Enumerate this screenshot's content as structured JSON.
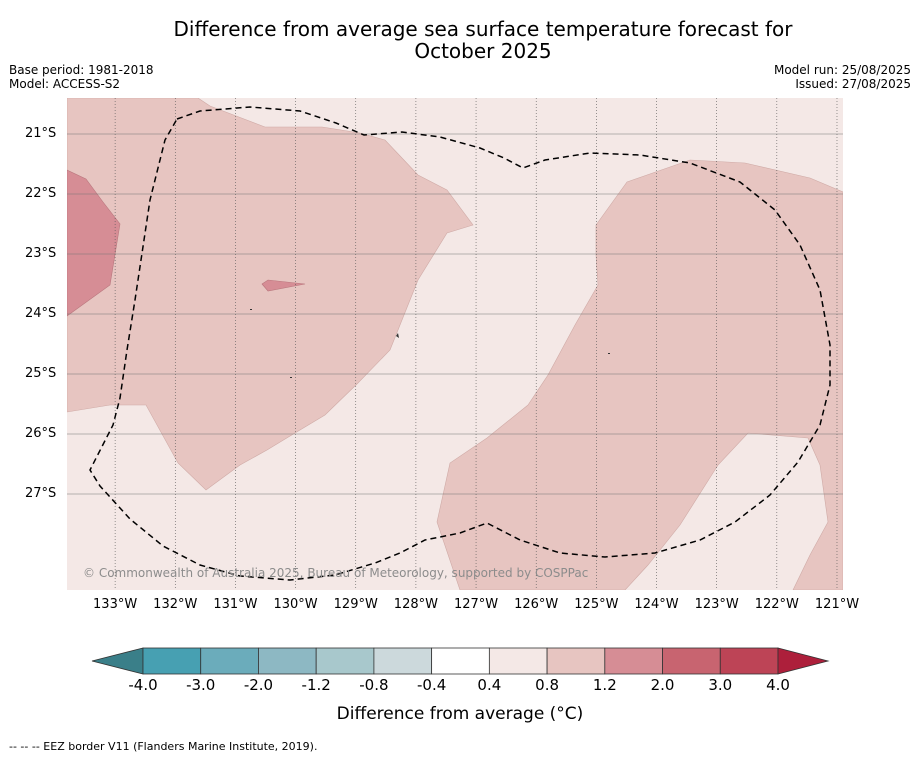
{
  "title": "Difference from average sea surface temperature forecast for October 2025",
  "meta_left": {
    "base_period": "Base period: 1981-2018",
    "model": "Model: ACCESS-S2"
  },
  "meta_right": {
    "model_run": "Model run: 25/08/2025",
    "issued": "Issued: 27/08/2025"
  },
  "copyright": "© Commonwealth of Australia 2025, Bureau of Meteorology, supported by COSPPac",
  "footer": "--  --  -- EEZ border V11 (Flanders Marine Institute, 2019).",
  "map": {
    "lon_range": [
      -133.8,
      -120.9
    ],
    "lat_range": [
      -28.6,
      -20.4
    ],
    "lat_labels": [
      "21°S",
      "22°S",
      "23°S",
      "24°S",
      "25°S",
      "26°S",
      "27°S"
    ],
    "lat_values": [
      -21,
      -22,
      -23,
      -24,
      -25,
      -26,
      -27
    ],
    "lon_labels": [
      "133°W",
      "132°W",
      "131°W",
      "130°W",
      "129°W",
      "128°W",
      "127°W",
      "126°W",
      "125°W",
      "124°W",
      "123°W",
      "122°W",
      "121°W"
    ],
    "lon_values": [
      -133,
      -132,
      -131,
      -130,
      -129,
      -128,
      -127,
      -126,
      -125,
      -124,
      -123,
      -122,
      -121
    ],
    "background_band": "0.4 to 0.8",
    "colors": {
      "band_0_4_to_0_8": "#f4e8e6",
      "band_0_8_to_1_2": "#e7c5c1",
      "band_1_2_to_2_0": "#d68d95",
      "eez": "#000000"
    }
  },
  "colorbar": {
    "label": "Difference from average (°C)",
    "ticks": [
      "-4.0",
      "-3.0",
      "-2.0",
      "-1.2",
      "-0.8",
      "-0.4",
      "0.4",
      "0.8",
      "1.2",
      "2.0",
      "3.0",
      "4.0"
    ],
    "colors": [
      "#3a7f89",
      "#47a0b2",
      "#6bacbb",
      "#8db8c3",
      "#a8c8cc",
      "#ccd9dc",
      "#ffffff",
      "#f4e8e6",
      "#e7c5c1",
      "#d68d95",
      "#c86470",
      "#bd4456",
      "#ad1f3b"
    ]
  }
}
